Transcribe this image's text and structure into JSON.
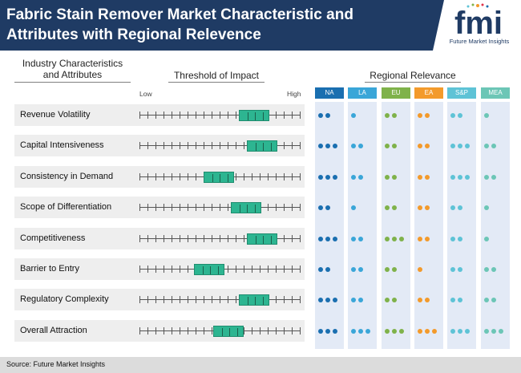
{
  "header": {
    "title": "Fabric Stain Remover Market Characteristic and Attributes with Regional Relevence",
    "logo_text": "fmi",
    "logo_tagline": "Future Market Insights"
  },
  "columns": {
    "characteristics": "Industry Characteristics and Attributes",
    "threshold": "Threshold of Impact",
    "regional": "Regional Relevance",
    "low": "Low",
    "high": "High"
  },
  "regions": [
    {
      "code": "NA",
      "color": "#1a6fb0"
    },
    {
      "code": "LA",
      "color": "#3aa6d8"
    },
    {
      "code": "EU",
      "color": "#7fb24a"
    },
    {
      "code": "EA",
      "color": "#f39a2b"
    },
    {
      "code": "S&P",
      "color": "#5ec3d6"
    },
    {
      "code": "MEA",
      "color": "#6cc6b6"
    }
  ],
  "rows": [
    {
      "label": "Revenue Volatility",
      "impact": [
        0.62,
        0.81
      ],
      "dots": [
        2,
        1,
        2,
        2,
        2,
        1
      ]
    },
    {
      "label": "Capital Intensiveness",
      "impact": [
        0.67,
        0.86
      ],
      "dots": [
        3,
        2,
        2,
        2,
        3,
        2
      ]
    },
    {
      "label": "Consistency in Demand",
      "impact": [
        0.4,
        0.59
      ],
      "dots": [
        3,
        2,
        2,
        2,
        3,
        2
      ]
    },
    {
      "label": "Scope of Differentiation",
      "impact": [
        0.57,
        0.76
      ],
      "dots": [
        2,
        1,
        2,
        2,
        2,
        1
      ]
    },
    {
      "label": "Competitiveness",
      "impact": [
        0.67,
        0.86
      ],
      "dots": [
        3,
        2,
        3,
        2,
        2,
        1
      ]
    },
    {
      "label": "Barrier to Entry",
      "impact": [
        0.34,
        0.53
      ],
      "dots": [
        2,
        2,
        2,
        1,
        2,
        2
      ]
    },
    {
      "label": "Regulatory Complexity",
      "impact": [
        0.62,
        0.81
      ],
      "dots": [
        3,
        2,
        2,
        2,
        2,
        2
      ]
    },
    {
      "label": "Overall Attraction",
      "impact": [
        0.46,
        0.65
      ],
      "dots": [
        3,
        3,
        3,
        3,
        3,
        3
      ]
    }
  ],
  "footer": {
    "source": "Source: Future Market Insights"
  }
}
